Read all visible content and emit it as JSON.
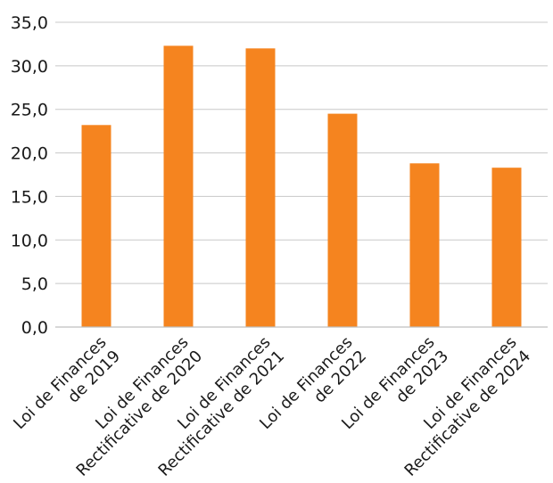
{
  "chart_data": {
    "type": "bar",
    "categories": [
      [
        "Loi de Finances",
        "de 2019"
      ],
      [
        "Loi de Finances",
        "Rectificative de 2020"
      ],
      [
        "Loi de Finances",
        "Rectificative de 2021"
      ],
      [
        "Loi de Finances",
        "de 2022"
      ],
      [
        "Loi de Finances",
        "de 2023"
      ],
      [
        "Loi de Finances",
        "Rectificative de 2024"
      ]
    ],
    "values": [
      23.2,
      32.3,
      32.0,
      24.5,
      18.8,
      18.3
    ],
    "yticks": [
      "0,0",
      "5,0",
      "10,0",
      "15,0",
      "20,0",
      "25,0",
      "30,0",
      "35,0"
    ],
    "ylim": [
      0,
      35
    ],
    "grid": true,
    "legend": "none",
    "bar_color": "#f5841f",
    "title": "",
    "xlabel": "",
    "ylabel": ""
  }
}
